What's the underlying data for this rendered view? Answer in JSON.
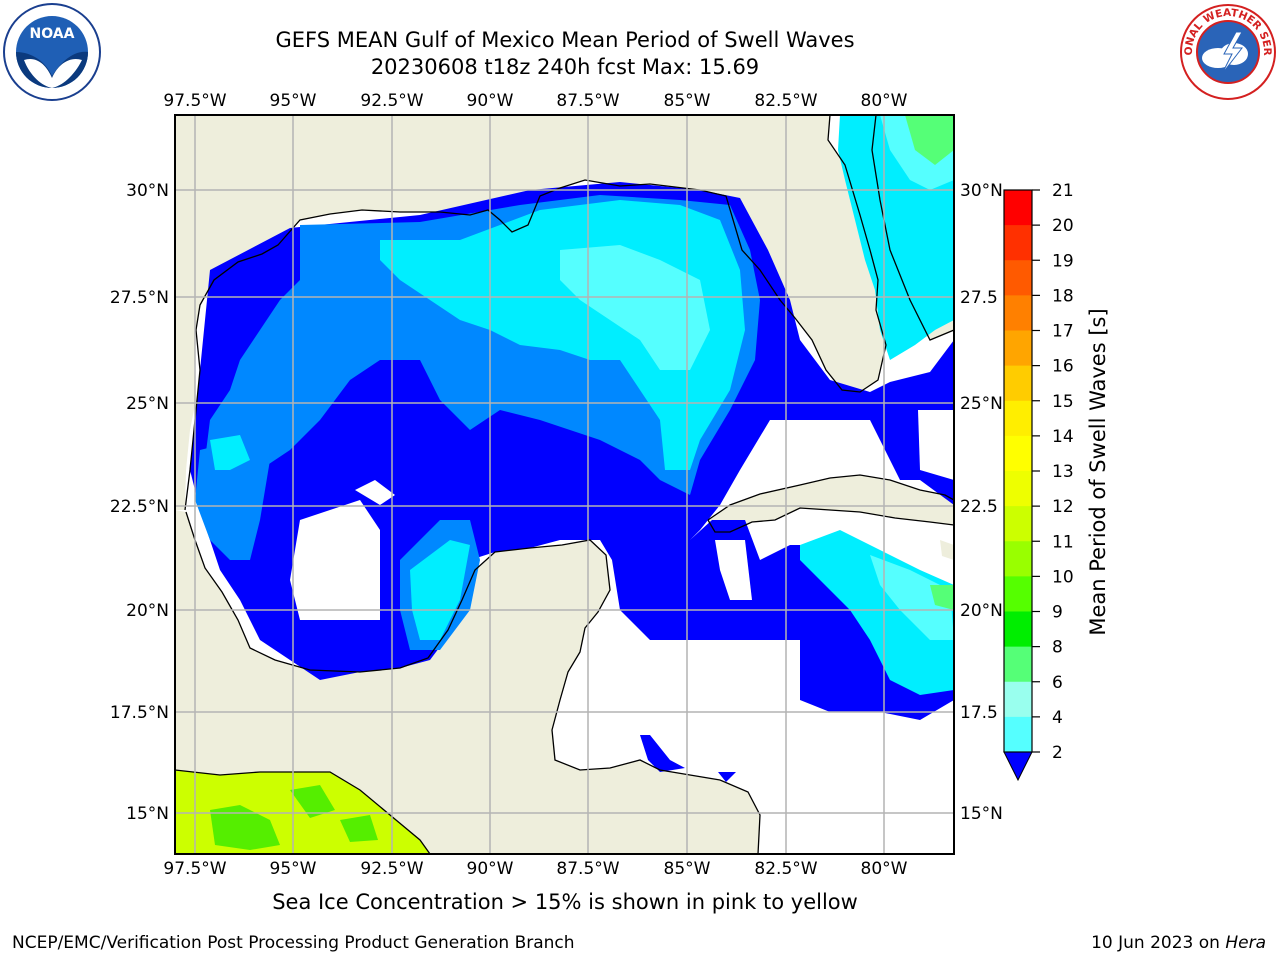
{
  "header": {
    "title_line1": "GEFS MEAN Gulf of Mexico Mean Period of Swell Waves",
    "title_line2": "20230608 t18z 240h fcst   Max: 15.69"
  },
  "map": {
    "lon_labels": [
      "97.5°W",
      "95°W",
      "92.5°W",
      "90°W",
      "87.5°W",
      "85°W",
      "82.5°W",
      "80°W"
    ],
    "lat_labels_left": [
      "30°N",
      "27.5°N",
      "25°N",
      "22.5°N",
      "20°N",
      "17.5°N",
      "15°N"
    ],
    "lat_labels_right": [
      "30°N",
      "27.5",
      "25°N",
      "22.5",
      "20°N",
      "17.5",
      "15°N"
    ],
    "colors": {
      "land": "#eeeedc",
      "grid": "#b4b4b4",
      "coast": "#000000"
    }
  },
  "colorbar": {
    "label": "Mean Period of Swell Waves [s]",
    "ticks": [
      "21",
      "20",
      "19",
      "18",
      "17",
      "16",
      "15",
      "14",
      "13",
      "12",
      "11",
      "10",
      "9",
      "8",
      "6",
      "4",
      "2"
    ],
    "colors": [
      "#ff0000",
      "#ff3000",
      "#ff5a00",
      "#ff8000",
      "#ffa500",
      "#ffcc00",
      "#ffee00",
      "#ffff00",
      "#eeff00",
      "#ccff00",
      "#99ff00",
      "#55ff00",
      "#00ee00",
      "#55ff77",
      "#99ffee",
      "#55ffff",
      "#00eeff",
      "#0088ff"
    ],
    "extend_color": "#0000ff"
  },
  "footer": {
    "sea_ice_note": "Sea Ice Concentration > 15% is shown in pink to yellow",
    "credit": "NCEP/EMC/Verification Post Processing Product Generation Branch",
    "date": "10 Jun 2023 on",
    "machine": "Hera"
  },
  "logos": {
    "noaa": "NOAA",
    "nws": "NATIONAL WEATHER SERVICE"
  }
}
